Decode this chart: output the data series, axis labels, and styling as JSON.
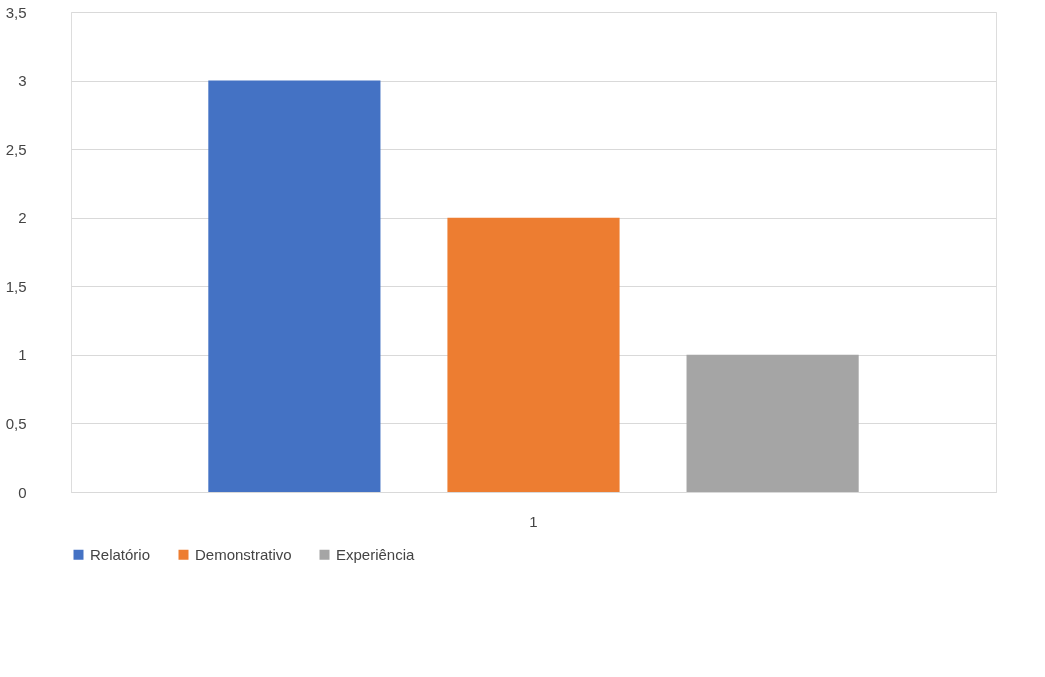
{
  "chart_data": {
    "type": "bar",
    "categories": [
      "1"
    ],
    "series": [
      {
        "name": "Relatório",
        "color": "#4472c4",
        "values": [
          3
        ]
      },
      {
        "name": "Demonstrativo",
        "color": "#ed7d31",
        "values": [
          2
        ]
      },
      {
        "name": "Experiência",
        "color": "#a5a5a5",
        "values": [
          1
        ]
      }
    ],
    "ylim": [
      0,
      3.5
    ],
    "yticks": [
      0,
      {
        "value": 0.5,
        "label": "0,5"
      },
      1,
      {
        "value": 1.5,
        "label": "1,5"
      },
      2,
      {
        "value": 2.5,
        "label": "2,5"
      },
      3,
      {
        "value": 3.5,
        "label": "3,5"
      }
    ],
    "grid": "y",
    "legend": "bottom"
  }
}
